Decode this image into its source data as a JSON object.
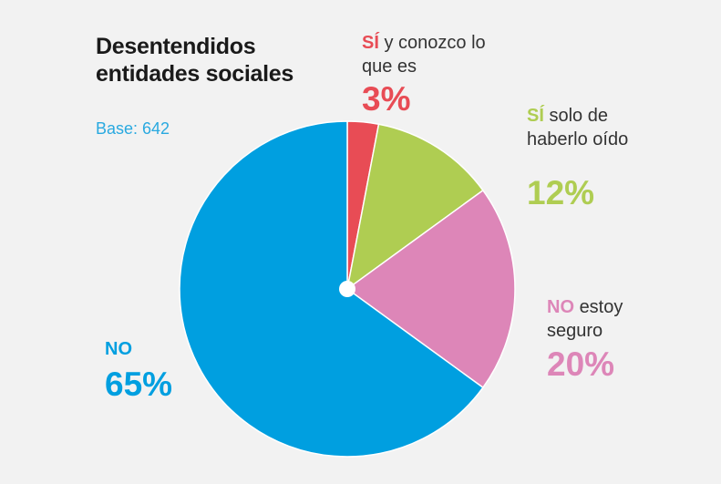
{
  "title": "Desentendidos entidades sociales",
  "base": "Base: 642",
  "chart_data": {
    "type": "pie",
    "title": "Desentendidos entidades sociales",
    "subtitle": "Base: 642",
    "slices": [
      {
        "keyword": "SÍ",
        "label": "y conozco lo que es",
        "value": 3,
        "display": "3%",
        "color": "#e84c55"
      },
      {
        "keyword": "SÍ",
        "label": "solo de haberlo oído",
        "value": 12,
        "display": "12%",
        "color": "#afcd52"
      },
      {
        "keyword": "NO",
        "label": "estoy seguro",
        "value": 20,
        "display": "20%",
        "color": "#dd86b8"
      },
      {
        "keyword": "NO",
        "label": "",
        "value": 65,
        "display": "65%",
        "color": "#009fe0"
      }
    ]
  }
}
